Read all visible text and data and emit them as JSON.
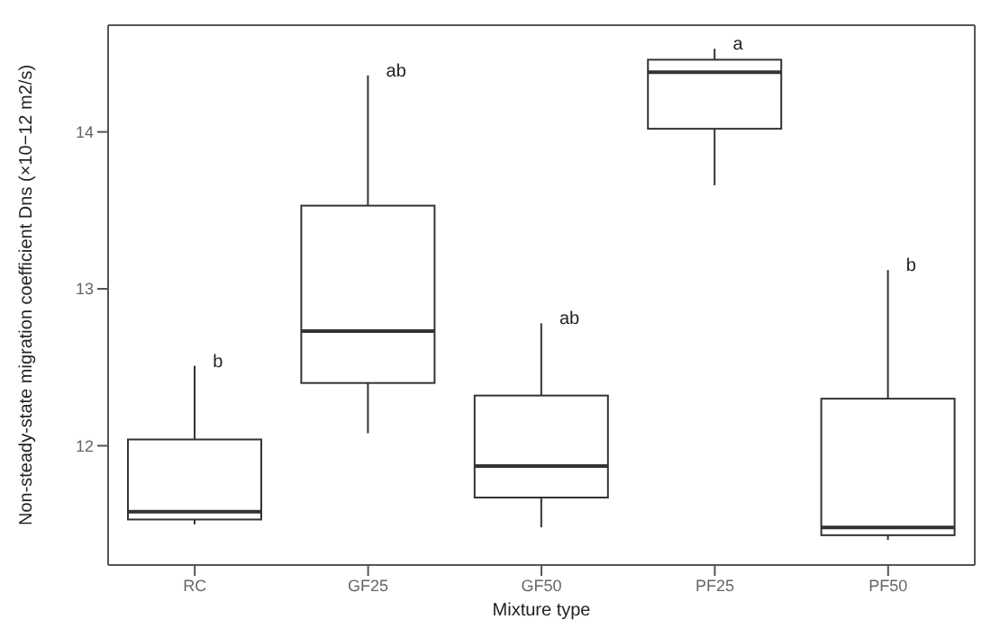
{
  "chart_data": {
    "type": "box",
    "xlabel": "Mixture type",
    "ylabel": "Non-steady-state migration coefficient Dns (×10−12 m2/s)",
    "categories": [
      "RC",
      "GF25",
      "GF50",
      "PF25",
      "PF50"
    ],
    "series": [
      {
        "color": "#333333",
        "boxes": [
          {
            "low": 11.5,
            "q1": 11.53,
            "median": 11.58,
            "q3": 12.04,
            "high": 12.51
          },
          {
            "low": 12.08,
            "q1": 12.4,
            "median": 12.73,
            "q3": 13.53,
            "high": 14.36
          },
          {
            "low": 11.48,
            "q1": 11.67,
            "median": 11.87,
            "q3": 12.32,
            "high": 12.78
          },
          {
            "low": 13.66,
            "q1": 14.02,
            "median": 14.38,
            "q3": 14.46,
            "high": 14.53
          },
          {
            "low": 11.4,
            "q1": 11.43,
            "median": 11.48,
            "q3": 12.3,
            "high": 13.12
          }
        ]
      }
    ],
    "ylim": [
      11.24,
      14.68
    ],
    "yticks": [
      12,
      13,
      14
    ],
    "grid": false,
    "annotations": [
      {
        "text": "b",
        "x": "RC",
        "y": 12.51
      },
      {
        "text": "ab",
        "x": "GF25",
        "y": 14.36
      },
      {
        "text": "ab",
        "x": "GF50",
        "y": 12.78
      },
      {
        "text": "a",
        "x": "PF25",
        "y": 14.53
      },
      {
        "text": "b",
        "x": "PF50",
        "y": 13.12
      }
    ]
  }
}
